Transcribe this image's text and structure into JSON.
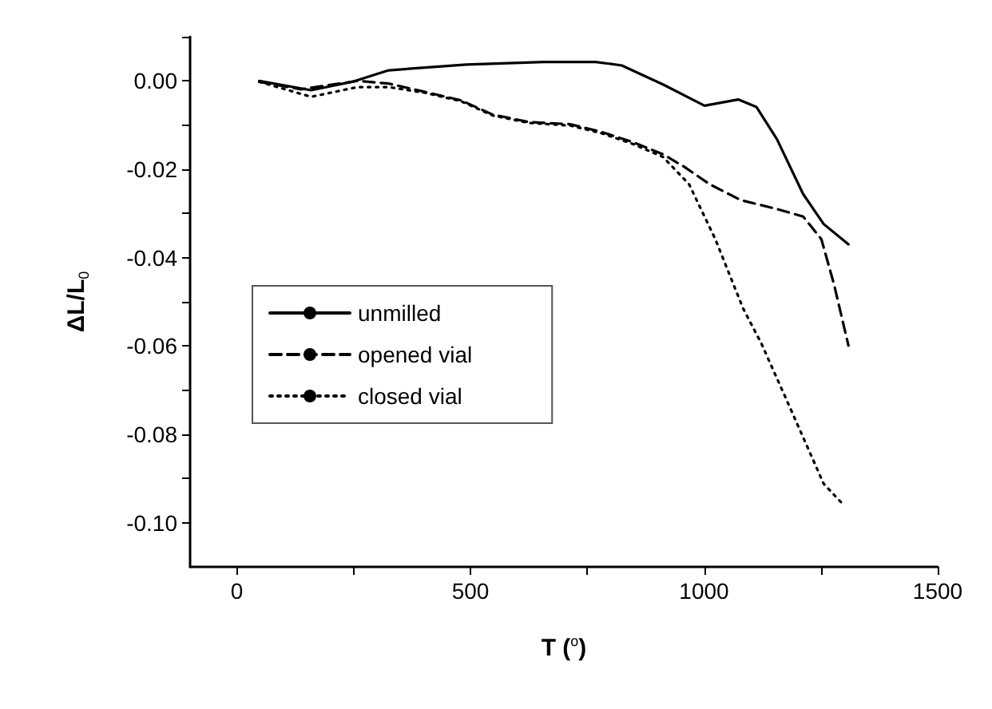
{
  "chart_data": {
    "type": "line",
    "xlabel": "T ($^{o}$)",
    "ylabel": "ΔL/L$_{0}$",
    "xlim": [
      -100,
      1500
    ],
    "xticks": [
      0,
      {
        "value": 250,
        "label": null
      },
      500,
      {
        "value": 750,
        "label": null
      },
      1000,
      {
        "value": 1250,
        "label": null
      },
      1500
    ],
    "ylim": [
      -0.11,
      0.01
    ],
    "yticks": [
      {
        "value": 0.01,
        "label": null
      },
      {
        "value": 0,
        "label": "0.00"
      },
      {
        "value": -0.01,
        "label": null
      },
      {
        "value": -0.02,
        "label": "-0.02"
      },
      {
        "value": -0.03,
        "label": null
      },
      {
        "value": -0.04,
        "label": "-0.04"
      },
      {
        "value": -0.05,
        "label": null
      },
      {
        "value": -0.06,
        "label": "-0.06"
      },
      {
        "value": -0.07,
        "label": null
      },
      {
        "value": -0.08,
        "label": "-0.08"
      },
      {
        "value": -0.09,
        "label": null
      },
      {
        "value": -0.1,
        "label": "-0.10"
      }
    ],
    "grid": false,
    "legend": "left",
    "marker": "none",
    "series": [
      {
        "name": "unmilled",
        "color": "#000000",
        "line_style": "solid",
        "x": [
          48,
          159,
          247,
          325,
          491,
          657,
          768,
          824,
          912,
          1001,
          1073,
          1112,
          1156,
          1212,
          1256,
          1309
        ],
        "values": [
          0,
          -0.0021,
          -0.0002,
          0.0024,
          0.0037,
          0.0043,
          0.0043,
          0.0035,
          -0.0008,
          -0.0056,
          -0.0042,
          -0.0059,
          -0.0132,
          -0.0256,
          -0.0324,
          -0.037
        ]
      },
      {
        "name": "opened vial",
        "color": "#000000",
        "line_style": "dashed",
        "x": [
          48,
          137,
          258,
          325,
          403,
          480,
          547,
          624,
          713,
          779,
          846,
          912,
          957,
          1012,
          1079,
          1156,
          1212,
          1251,
          1278,
          1309
        ],
        "values": [
          -0.0002,
          -0.0019,
          0,
          -0.0006,
          -0.0025,
          -0.0044,
          -0.0076,
          -0.0093,
          -0.0098,
          -0.0115,
          -0.0138,
          -0.0166,
          -0.0194,
          -0.0234,
          -0.027,
          -0.029,
          -0.0307,
          -0.0358,
          -0.046,
          -0.0599
        ]
      },
      {
        "name": "closed vial",
        "color": "#000000",
        "line_style": "dotted",
        "x": [
          48,
          159,
          258,
          325,
          403,
          480,
          547,
          624,
          713,
          779,
          846,
          912,
          968,
          1024,
          1084,
          1123,
          1190,
          1256,
          1298
        ],
        "values": [
          -0.0002,
          -0.0036,
          -0.0014,
          -0.0014,
          -0.0027,
          -0.0046,
          -0.0078,
          -0.0095,
          -0.0101,
          -0.0118,
          -0.0142,
          -0.0172,
          -0.0234,
          -0.0358,
          -0.0516,
          -0.0595,
          -0.0754,
          -0.0912,
          -0.0959
        ]
      }
    ]
  }
}
